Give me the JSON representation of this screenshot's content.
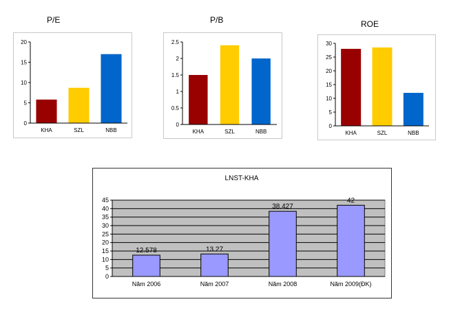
{
  "chart_data": [
    {
      "type": "bar",
      "title": "P/E",
      "categories": [
        "KHA",
        "SZL",
        "NBB"
      ],
      "values": [
        5.8,
        8.7,
        17
      ],
      "colors": [
        "#990000",
        "#ffcc00",
        "#0066cc"
      ],
      "ylim": [
        0,
        20
      ],
      "yticks": [
        "0",
        "5",
        "10",
        "15",
        "20"
      ],
      "grid": false,
      "legend": "none"
    },
    {
      "type": "bar",
      "title": "P/B",
      "categories": [
        "KHA",
        "SZL",
        "NBB"
      ],
      "values": [
        1.5,
        2.4,
        2.0
      ],
      "colors": [
        "#990000",
        "#ffcc00",
        "#0066cc"
      ],
      "ylim": [
        0,
        2.5
      ],
      "yticks": [
        "0",
        "0.5",
        "1",
        "1.5",
        "2",
        "2.5"
      ],
      "grid": false,
      "legend": "none"
    },
    {
      "type": "bar",
      "title": "ROE",
      "categories": [
        "KHA",
        "SZL",
        "NBB"
      ],
      "values": [
        28,
        28.5,
        12
      ],
      "colors": [
        "#990000",
        "#ffcc00",
        "#0066cc"
      ],
      "ylim": [
        0,
        30
      ],
      "yticks": [
        "0",
        "5",
        "10",
        "15",
        "20",
        "25",
        "30"
      ],
      "grid": false,
      "legend": "none"
    },
    {
      "type": "bar",
      "title": "LNST-KHA",
      "categories": [
        "Năm 2006",
        "Năm 2007",
        "Năm 2008",
        "Năm 2009(ĐK)"
      ],
      "values": [
        12.578,
        13.27,
        38.427,
        42
      ],
      "data_labels": [
        "12.578",
        "13.27",
        "38.427",
        "42"
      ],
      "colors": [
        "#9999ff"
      ],
      "plot_background": "#c0c0c0",
      "ylim": [
        0,
        45
      ],
      "yticks": [
        "0",
        "5",
        "10",
        "15",
        "20",
        "25",
        "30",
        "35",
        "40",
        "45"
      ],
      "grid": true,
      "legend": "none"
    }
  ]
}
